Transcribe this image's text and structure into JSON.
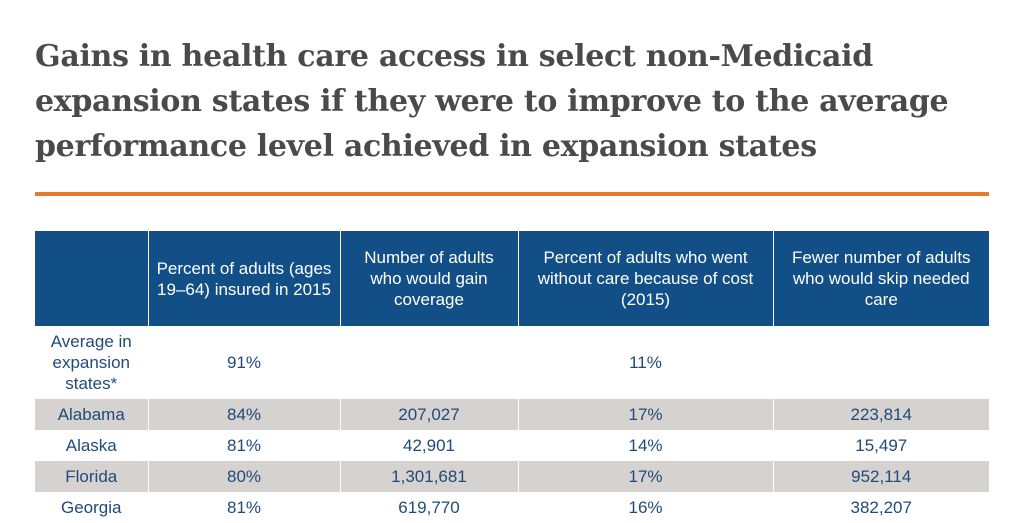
{
  "title": "Gains in health care access in select non-Medicaid expansion states if they were to improve to the average performance level achieved in expansion states",
  "colors": {
    "title": "#4a4a4a",
    "rule": "#e8792b",
    "header_bg": "#124f87",
    "text": "#1f4a7a",
    "row_shade": "#d6d2cf"
  },
  "table": {
    "headers": [
      "",
      "Percent of adults (ages 19–64) insured in 2015",
      "Number of adults who would gain coverage",
      "Percent of adults who went without care because of cost (2015)",
      "Fewer number of adults who would skip needed care"
    ],
    "rows": [
      [
        "Average in expansion states*",
        "91%",
        "",
        "11%",
        ""
      ],
      [
        "Alabama",
        "84%",
        "207,027",
        "17%",
        "223,814"
      ],
      [
        "Alaska",
        "81%",
        "42,901",
        "14%",
        "15,497"
      ],
      [
        "Florida",
        "80%",
        "1,301,681",
        "17%",
        "952,114"
      ],
      [
        "Georgia",
        "81%",
        "619,770",
        "16%",
        "382,207"
      ]
    ]
  }
}
